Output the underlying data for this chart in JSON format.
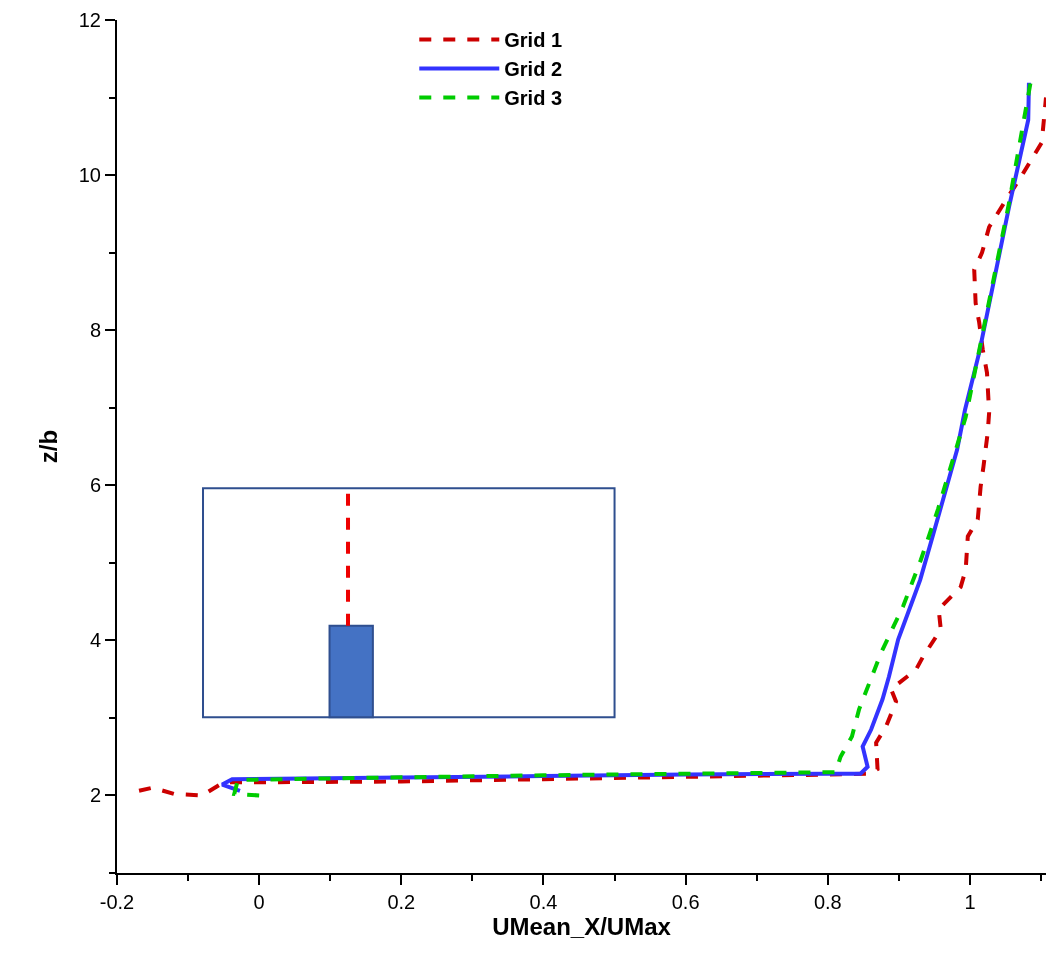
{
  "chart_data": {
    "type": "line",
    "xlabel": "UMean_X/UMax",
    "ylabel": "z/b",
    "xlim": [
      -0.2,
      1.107
    ],
    "ylim": [
      1,
      12
    ],
    "xticks": [
      -0.2,
      0,
      0.2,
      0.4,
      0.6,
      0.8,
      1
    ],
    "yticks": [
      2,
      4,
      6,
      8,
      10,
      12
    ],
    "grid": false,
    "legend": "top",
    "marker": "none",
    "series": [
      {
        "name": "Grid 1",
        "color": "#cc0000",
        "line_style": "dashed",
        "x": [
          -0.169,
          -0.15,
          -0.12,
          -0.08,
          -0.05,
          0.0,
          0.2,
          0.4,
          0.6,
          0.8,
          0.86,
          0.87,
          0.868,
          0.882,
          0.896,
          0.889,
          0.924,
          0.934,
          0.959,
          0.956,
          0.987,
          0.994,
          0.997,
          1.011,
          1.015,
          1.019,
          1.025,
          1.027,
          1.024,
          1.018,
          1.013,
          1.008,
          1.006,
          1.017,
          1.027,
          1.048,
          1.072,
          1.101,
          1.107
        ],
        "values": [
          2.06,
          2.1,
          2.02,
          2.0,
          2.17,
          2.17,
          2.18,
          2.21,
          2.24,
          2.27,
          2.28,
          2.34,
          2.68,
          2.89,
          3.21,
          3.37,
          3.62,
          3.79,
          4.14,
          4.4,
          4.69,
          4.91,
          5.34,
          5.56,
          5.98,
          6.24,
          6.68,
          6.94,
          7.45,
          7.75,
          8.1,
          8.35,
          8.78,
          9.0,
          9.33,
          9.64,
          9.98,
          10.42,
          11.0
        ]
      },
      {
        "name": "Grid 2",
        "color": "#3333ff",
        "line_style": "solid",
        "x": [
          -0.027,
          -0.052,
          -0.038,
          0.2,
          0.4,
          0.6,
          0.8,
          0.846,
          0.856,
          0.849,
          0.861,
          0.877,
          0.886,
          0.899,
          0.92,
          0.93,
          0.945,
          0.962,
          0.982,
          0.993,
          1.013,
          1.055,
          1.082,
          1.083
        ],
        "values": [
          2.06,
          2.14,
          2.21,
          2.23,
          2.25,
          2.27,
          2.28,
          2.28,
          2.37,
          2.63,
          2.85,
          3.24,
          3.53,
          4.01,
          4.53,
          4.78,
          5.26,
          5.81,
          6.46,
          6.97,
          7.71,
          9.59,
          10.71,
          11.19
        ]
      },
      {
        "name": "Grid 3",
        "color": "#00cc00",
        "line_style": "dashed",
        "x": [
          0.0,
          -0.035,
          -0.03,
          0.1,
          0.4,
          0.6,
          0.8,
          0.811,
          0.818,
          0.834,
          0.844,
          0.875,
          0.906,
          0.931,
          0.955,
          0.994,
          1.055,
          1.086
        ],
        "values": [
          2.0,
          2.02,
          2.2,
          2.22,
          2.26,
          2.28,
          2.3,
          2.3,
          2.5,
          2.76,
          3.11,
          3.84,
          4.44,
          5.04,
          5.69,
          6.88,
          9.64,
          11.23
        ]
      }
    ]
  }
}
